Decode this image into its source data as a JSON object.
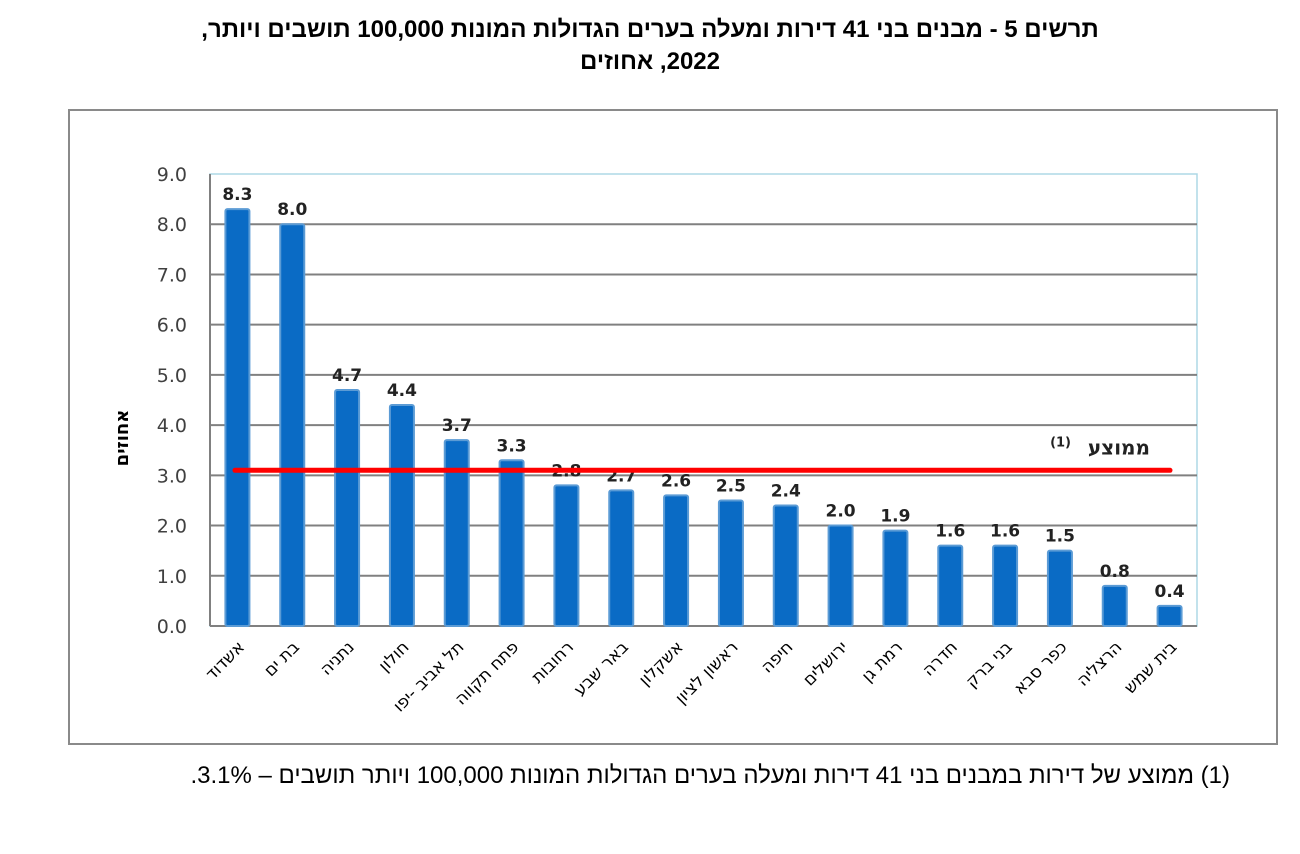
{
  "title_line1": "תרשים 5 - מבנים בני 41 דירות ומעלה בערים הגדולות המונות 100,000 תושבים ויותר,",
  "title_line2": "2022, אחוזים",
  "footnote": "(1) ממוצע של דירות במבנים בני 41 דירות ומעלה בערים הגדולות המונות 100,000 ויותר תושבים – 3.1%.",
  "colors": {
    "bar": "#0a6bc5",
    "bar_edge": "#5b9bd5",
    "average_line": "#ff0000",
    "grid": "#808080",
    "plot_border": "#add8e6"
  },
  "chart_data": {
    "type": "bar",
    "title": "תרשים 5 - מבנים בני 41 דירות ומעלה בערים הגדולות המונות 100,000 תושבים ויותר, 2022, אחוזים",
    "xlabel": "",
    "ylabel": "אחוזים",
    "ylim": [
      0,
      9
    ],
    "yticks": [
      "0.0",
      "1.0",
      "2.0",
      "3.0",
      "4.0",
      "5.0",
      "6.0",
      "7.0",
      "8.0",
      "9.0"
    ],
    "grid": true,
    "categories": [
      "אשדוד",
      "בת ים",
      "נתניה",
      "חולון",
      "תל אביב -יפו",
      "פתח תקווה",
      "רחובות",
      "באר שבע",
      "אשקלון",
      "ראשון לציון",
      "חיפה",
      "ירושלים",
      "רמת גן",
      "חדרה",
      "בני ברק",
      "כפר סבא",
      "הרצליה",
      "בית שמש"
    ],
    "values": [
      8.3,
      8.0,
      4.7,
      4.4,
      3.7,
      3.3,
      2.8,
      2.7,
      2.6,
      2.5,
      2.4,
      2.0,
      1.9,
      1.6,
      1.6,
      1.5,
      0.8,
      0.4
    ],
    "data_labels": [
      "8.3",
      "8.0",
      "4.7",
      "4.4",
      "3.7",
      "3.3",
      "2.8",
      "2.7",
      "2.6",
      "2.5",
      "2.4",
      "2.0",
      "1.9",
      "1.6",
      "1.6",
      "1.5",
      "0.8",
      "0.4"
    ],
    "average": {
      "value": 3.1,
      "label": "ממוצע",
      "superscript": "(1)"
    }
  }
}
